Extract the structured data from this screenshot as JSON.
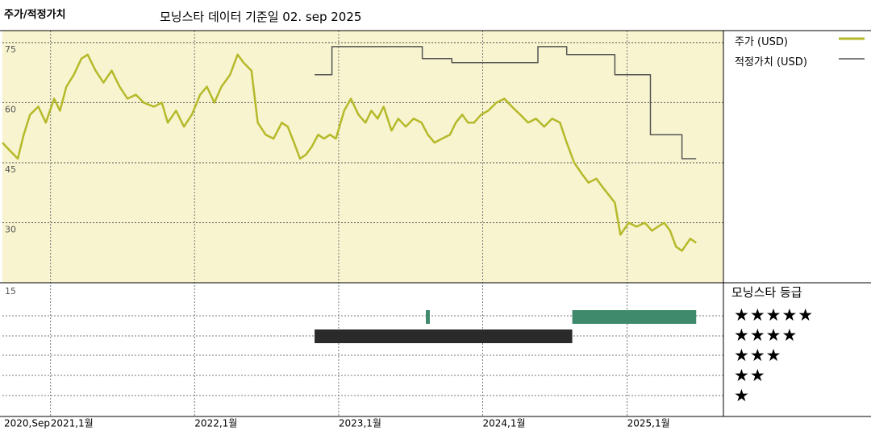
{
  "header": {
    "left_title": "주가/적정가치",
    "main_title": "모닝스타 데이터 기준일 02. sep 2025"
  },
  "legend": {
    "price_label": "주가 (USD)",
    "fair_label": "적정가치 (USD)",
    "price_color": "#b5b92a",
    "fair_color": "#555555"
  },
  "rating_panel": {
    "title": "모닝스타 등급",
    "stars5": "★★★★★",
    "stars4": "★★★★",
    "stars3": "★★★",
    "stars2": "★★",
    "stars1": "★",
    "rating_5_color": "#3f8a6c",
    "rating_4_color": "#2a2a2a"
  },
  "chart_data": {
    "type": "line",
    "title": "모닝스타 데이터 기준일 02. sep 2025",
    "y_ticks": [
      75,
      60,
      45,
      30,
      15
    ],
    "ylim": [
      15,
      78
    ],
    "x_range": [
      "2020-09-01",
      "2025-09-02"
    ],
    "x_tick_labels": [
      {
        "label": "2020,Sep",
        "date": "2020-09-01"
      },
      {
        "label": "2021,1월",
        "date": "2021-01-01"
      },
      {
        "label": "2022,1월",
        "date": "2022-01-01"
      },
      {
        "label": "2023,1월",
        "date": "2023-01-01"
      },
      {
        "label": "2024,1월",
        "date": "2024-01-01"
      },
      {
        "label": "2025,1월",
        "date": "2025-01-01"
      }
    ],
    "series": [
      {
        "name": "주가 (USD)",
        "points": [
          [
            "2020-09-01",
            50
          ],
          [
            "2020-09-20",
            48
          ],
          [
            "2020-10-10",
            46
          ],
          [
            "2020-10-25",
            52
          ],
          [
            "2020-11-10",
            57
          ],
          [
            "2020-12-01",
            59
          ],
          [
            "2020-12-20",
            55
          ],
          [
            "2021-01-10",
            61
          ],
          [
            "2021-01-25",
            58
          ],
          [
            "2021-02-10",
            64
          ],
          [
            "2021-03-01",
            67
          ],
          [
            "2021-03-20",
            71
          ],
          [
            "2021-04-05",
            72
          ],
          [
            "2021-04-25",
            68
          ],
          [
            "2021-05-15",
            65
          ],
          [
            "2021-06-05",
            68
          ],
          [
            "2021-06-25",
            64
          ],
          [
            "2021-07-15",
            61
          ],
          [
            "2021-08-05",
            62
          ],
          [
            "2021-08-25",
            60
          ],
          [
            "2021-09-20",
            59
          ],
          [
            "2021-10-10",
            60
          ],
          [
            "2021-10-25",
            55
          ],
          [
            "2021-11-15",
            58
          ],
          [
            "2021-12-05",
            54
          ],
          [
            "2021-12-25",
            57
          ],
          [
            "2022-01-15",
            62
          ],
          [
            "2022-02-01",
            64
          ],
          [
            "2022-02-20",
            60
          ],
          [
            "2022-03-10",
            64
          ],
          [
            "2022-04-01",
            67
          ],
          [
            "2022-04-20",
            72
          ],
          [
            "2022-05-05",
            70
          ],
          [
            "2022-05-25",
            68
          ],
          [
            "2022-06-10",
            55
          ],
          [
            "2022-06-30",
            52
          ],
          [
            "2022-07-20",
            51
          ],
          [
            "2022-08-10",
            55
          ],
          [
            "2022-08-25",
            54
          ],
          [
            "2022-09-10",
            50
          ],
          [
            "2022-09-25",
            46
          ],
          [
            "2022-10-10",
            47
          ],
          [
            "2022-10-25",
            49
          ],
          [
            "2022-11-10",
            52
          ],
          [
            "2022-11-25",
            51
          ],
          [
            "2022-12-10",
            52
          ],
          [
            "2022-12-25",
            51
          ],
          [
            "2023-01-15",
            58
          ],
          [
            "2023-02-01",
            61
          ],
          [
            "2023-02-20",
            57
          ],
          [
            "2023-03-10",
            55
          ],
          [
            "2023-03-25",
            58
          ],
          [
            "2023-04-10",
            56
          ],
          [
            "2023-04-25",
            59
          ],
          [
            "2023-05-15",
            53
          ],
          [
            "2023-06-01",
            56
          ],
          [
            "2023-06-20",
            54
          ],
          [
            "2023-07-10",
            56
          ],
          [
            "2023-07-30",
            55
          ],
          [
            "2023-08-15",
            52
          ],
          [
            "2023-09-01",
            50
          ],
          [
            "2023-09-20",
            51
          ],
          [
            "2023-10-10",
            52
          ],
          [
            "2023-10-25",
            55
          ],
          [
            "2023-11-10",
            57
          ],
          [
            "2023-11-25",
            55
          ],
          [
            "2023-12-10",
            55
          ],
          [
            "2023-12-28",
            57
          ],
          [
            "2024-01-15",
            58
          ],
          [
            "2024-02-05",
            60
          ],
          [
            "2024-02-25",
            61
          ],
          [
            "2024-03-15",
            59
          ],
          [
            "2024-04-05",
            57
          ],
          [
            "2024-04-25",
            55
          ],
          [
            "2024-05-15",
            56
          ],
          [
            "2024-06-05",
            54
          ],
          [
            "2024-06-25",
            56
          ],
          [
            "2024-07-15",
            55
          ],
          [
            "2024-08-01",
            50
          ],
          [
            "2024-08-20",
            45
          ],
          [
            "2024-09-10",
            42
          ],
          [
            "2024-09-25",
            40
          ],
          [
            "2024-10-15",
            41
          ],
          [
            "2024-10-30",
            39
          ],
          [
            "2024-11-15",
            37
          ],
          [
            "2024-12-01",
            35
          ],
          [
            "2024-12-15",
            27
          ],
          [
            "2025-01-05",
            30
          ],
          [
            "2025-01-25",
            29
          ],
          [
            "2025-02-15",
            30
          ],
          [
            "2025-03-05",
            28
          ],
          [
            "2025-03-20",
            29
          ],
          [
            "2025-04-05",
            30
          ],
          [
            "2025-04-20",
            28
          ],
          [
            "2025-05-05",
            24
          ],
          [
            "2025-05-20",
            23
          ],
          [
            "2025-06-10",
            26
          ],
          [
            "2025-06-25",
            25
          ]
        ]
      },
      {
        "name": "적정가치 (USD)",
        "step": true,
        "points": [
          [
            "2022-11-01",
            67
          ],
          [
            "2022-12-15",
            67
          ],
          [
            "2022-12-15",
            74
          ],
          [
            "2023-08-01",
            74
          ],
          [
            "2023-08-01",
            71
          ],
          [
            "2023-10-15",
            71
          ],
          [
            "2023-10-15",
            70
          ],
          [
            "2024-05-20",
            70
          ],
          [
            "2024-05-20",
            74
          ],
          [
            "2024-08-01",
            74
          ],
          [
            "2024-08-01",
            72
          ],
          [
            "2024-12-01",
            72
          ],
          [
            "2024-12-01",
            67
          ],
          [
            "2025-03-01",
            67
          ],
          [
            "2025-03-01",
            52
          ],
          [
            "2025-05-20",
            52
          ],
          [
            "2025-05-20",
            46
          ],
          [
            "2025-06-25",
            46
          ]
        ]
      }
    ],
    "ratings": [
      {
        "stars": 4,
        "start": "2022-11-01",
        "end": "2024-08-15"
      },
      {
        "stars": 5,
        "start": "2023-08-10",
        "end": "2023-08-20"
      },
      {
        "stars": 5,
        "start": "2024-08-15",
        "end": "2025-06-25"
      }
    ]
  }
}
